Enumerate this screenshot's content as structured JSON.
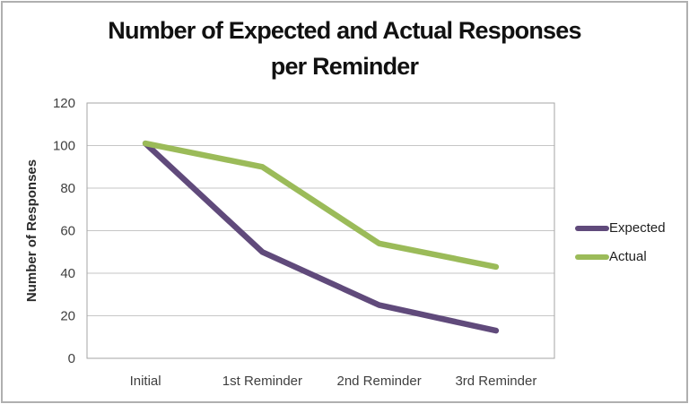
{
  "window": {
    "background_color": "#ffffff",
    "border_color": "#b0b0b0"
  },
  "chart_data": {
    "type": "line",
    "title": "Number of Expected and Actual Responses per Reminder",
    "title_lines": [
      "Number of Expected and Actual Responses",
      "per Reminder"
    ],
    "categories": [
      "Initial",
      "1st Reminder",
      "2nd Reminder",
      "3rd Reminder"
    ],
    "series": [
      {
        "name": "Expected",
        "color": "#604A7B",
        "values": [
          101,
          50,
          25,
          13
        ]
      },
      {
        "name": "Actual",
        "color": "#9BBB59",
        "values": [
          101,
          90,
          54,
          43
        ]
      }
    ],
    "xlabel": "",
    "ylabel": "Number of Responses",
    "ylim": [
      0,
      120
    ],
    "yticks": [
      0,
      20,
      40,
      60,
      80,
      100,
      120
    ],
    "grid": "horizontal",
    "legend_position": "right",
    "colors": {
      "gridline": "#c6c6c6",
      "plot_border": "#a6a6a6",
      "tick_text": "#3f3f3f",
      "axis_title_text": "#2b2b2b",
      "title_text": "#111111"
    }
  }
}
